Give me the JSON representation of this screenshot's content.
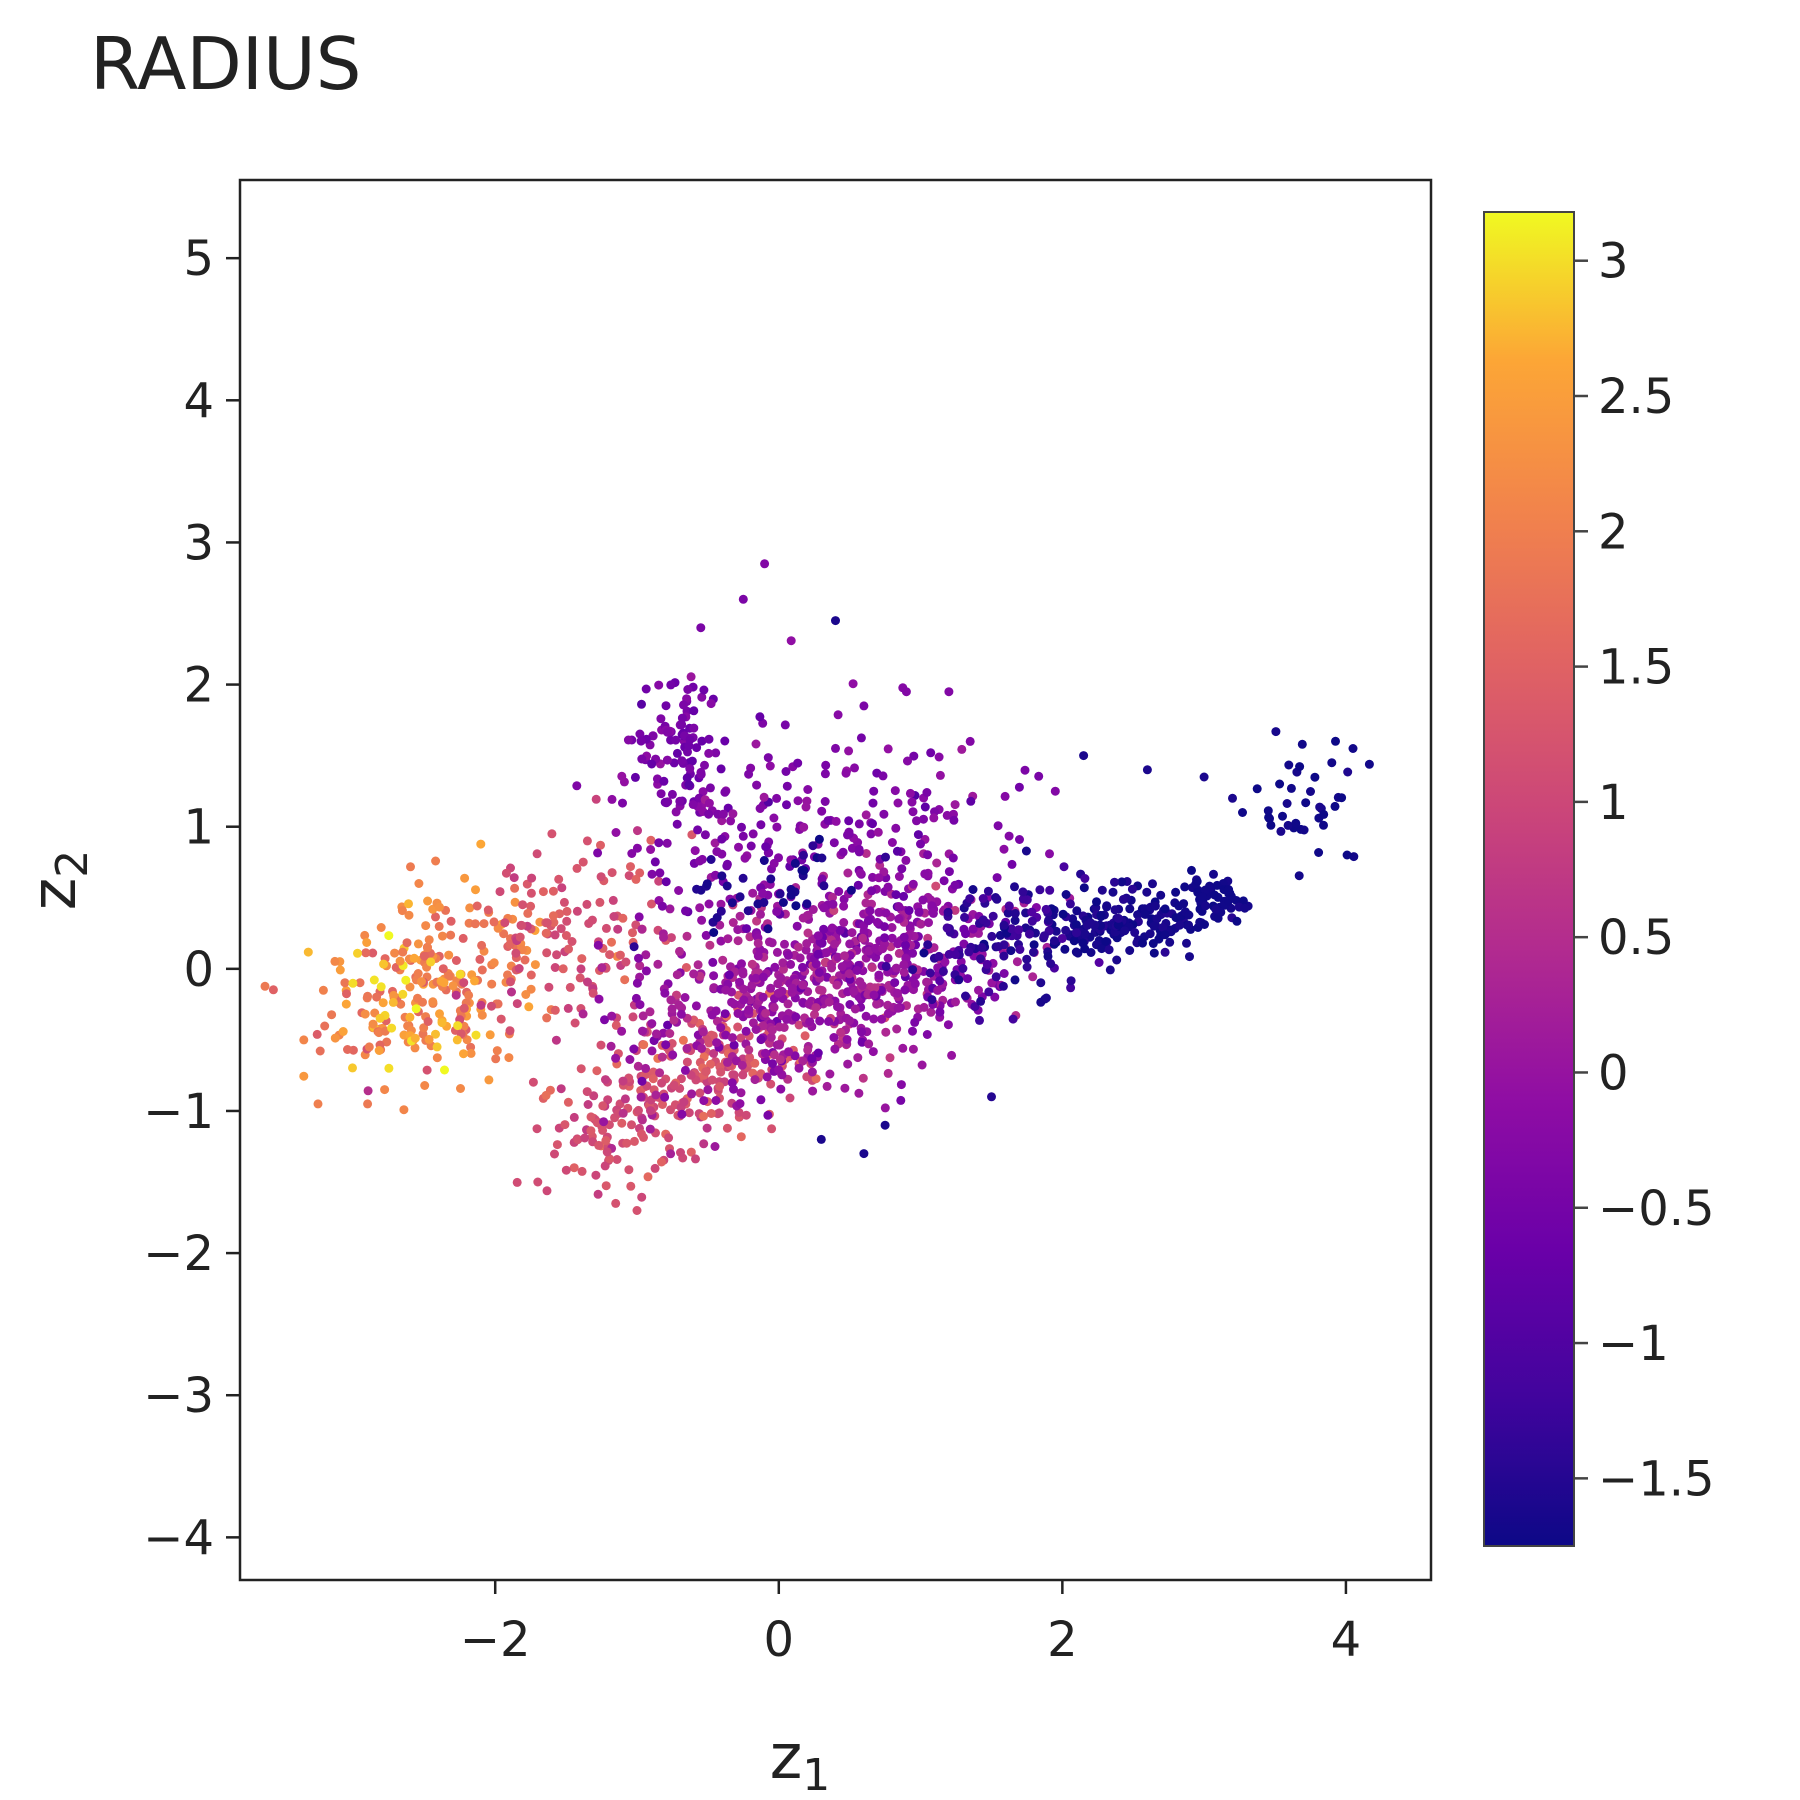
{
  "chart_data": {
    "type": "scatter",
    "title": "RADIUS",
    "xlabel": "z",
    "xlabel_sub": "1",
    "ylabel": "z",
    "ylabel_sub": "2",
    "xlim": [
      -3.8,
      4.6
    ],
    "ylim": [
      -4.3,
      5.55
    ],
    "xticks": [
      -2,
      0,
      2,
      4
    ],
    "yticks": [
      -4,
      -3,
      -2,
      -1,
      0,
      1,
      2,
      3,
      4,
      5
    ],
    "grid": false,
    "colorbar": {
      "colormap": "plasma",
      "range": [
        -1.75,
        3.18
      ],
      "ticks": [
        3,
        2.5,
        2,
        1.5,
        1,
        0.5,
        0,
        -0.5,
        -1,
        -1.5
      ],
      "tick_labels": [
        "3",
        "2.5",
        "2",
        "1.5",
        "1",
        "0.5",
        "0",
        "−0.5",
        "−1",
        "−1.5"
      ]
    },
    "clusters": [
      {
        "center": [
          -2.4,
          -0.1
        ],
        "spread": [
          0.45,
          0.35
        ],
        "rot": 0.35,
        "n": 230,
        "value": 2.0,
        "vspread": 0.35
      },
      {
        "center": [
          -2.6,
          -0.25
        ],
        "spread": [
          0.25,
          0.25
        ],
        "rot": 0.0,
        "n": 40,
        "value": 2.7,
        "vspread": 0.25
      },
      {
        "center": [
          -1.5,
          0.25
        ],
        "spread": [
          0.35,
          0.3
        ],
        "rot": 0.3,
        "n": 120,
        "value": 1.2,
        "vspread": 0.25
      },
      {
        "center": [
          -0.5,
          -0.75
        ],
        "spread": [
          0.45,
          0.25
        ],
        "rot": 0.35,
        "n": 200,
        "value": 1.2,
        "vspread": 0.25
      },
      {
        "center": [
          -1.2,
          -1.1
        ],
        "spread": [
          0.3,
          0.2
        ],
        "rot": 0.3,
        "n": 80,
        "value": 1.05,
        "vspread": 0.2
      },
      {
        "center": [
          0.1,
          -0.1
        ],
        "spread": [
          0.6,
          0.35
        ],
        "rot": 0.35,
        "n": 550,
        "value": 0.1,
        "vspread": 0.3
      },
      {
        "center": [
          0.9,
          0.05
        ],
        "spread": [
          0.5,
          0.3
        ],
        "rot": 0.3,
        "n": 200,
        "value": -0.1,
        "vspread": 0.3
      },
      {
        "center": [
          -0.7,
          1.6
        ],
        "spread": [
          0.15,
          0.25
        ],
        "rot": 0.0,
        "n": 90,
        "value": -0.45,
        "vspread": 0.2
      },
      {
        "center": [
          -0.2,
          1.0
        ],
        "spread": [
          0.5,
          0.4
        ],
        "rot": 0.3,
        "n": 140,
        "value": -0.35,
        "vspread": 0.2
      },
      {
        "center": [
          0.9,
          0.9
        ],
        "spread": [
          0.45,
          0.35
        ],
        "rot": 0.2,
        "n": 110,
        "value": -0.3,
        "vspread": 0.2
      },
      {
        "center": [
          2.4,
          0.3
        ],
        "spread": [
          0.3,
          0.12
        ],
        "rot": 0.1,
        "n": 170,
        "value": -1.65,
        "vspread": 0.1
      },
      {
        "center": [
          3.0,
          0.45
        ],
        "spread": [
          0.15,
          0.08
        ],
        "rot": 0.2,
        "n": 60,
        "value": -1.7,
        "vspread": 0.05
      },
      {
        "center": [
          1.6,
          0.25
        ],
        "spread": [
          0.35,
          0.2
        ],
        "rot": 0.3,
        "n": 120,
        "value": -1.4,
        "vspread": 0.2
      },
      {
        "center": [
          3.6,
          1.1
        ],
        "spread": [
          0.25,
          0.2
        ],
        "rot": 0.7,
        "n": 40,
        "value": -1.7,
        "vspread": 0.05
      },
      {
        "center": [
          0.0,
          0.6
        ],
        "spread": [
          0.4,
          0.12
        ],
        "rot": 0.45,
        "n": 40,
        "value": -1.6,
        "vspread": 0.1
      }
    ],
    "outliers": [
      {
        "x": -0.1,
        "y": 2.85,
        "v": -0.3
      },
      {
        "x": 0.4,
        "y": 2.45,
        "v": -1.6
      },
      {
        "x": -0.25,
        "y": 2.6,
        "v": -0.4
      },
      {
        "x": -0.55,
        "y": 2.4,
        "v": -0.4
      },
      {
        "x": 1.2,
        "y": 1.95,
        "v": -0.3
      },
      {
        "x": 0.9,
        "y": 1.95,
        "v": -0.3
      },
      {
        "x": 0.6,
        "y": 1.85,
        "v": -0.4
      },
      {
        "x": 1.35,
        "y": 1.6,
        "v": -0.3
      },
      {
        "x": 2.15,
        "y": 1.5,
        "v": -1.6
      },
      {
        "x": 2.6,
        "y": 1.4,
        "v": -1.6
      },
      {
        "x": 3.0,
        "y": 1.35,
        "v": -1.6
      },
      {
        "x": 3.2,
        "y": 1.2,
        "v": -1.6
      },
      {
        "x": 4.05,
        "y": 1.55,
        "v": -1.7
      },
      {
        "x": 3.9,
        "y": 1.45,
        "v": -1.7
      },
      {
        "x": 1.5,
        "y": -0.9,
        "v": -1.5
      },
      {
        "x": 0.6,
        "y": -1.3,
        "v": -1.6
      },
      {
        "x": 0.3,
        "y": -1.2,
        "v": -1.6
      },
      {
        "x": 0.75,
        "y": -1.1,
        "v": -1.6
      },
      {
        "x": -0.45,
        "y": -1.25,
        "v": 0.1
      },
      {
        "x": -1.15,
        "y": -1.65,
        "v": 1.2
      },
      {
        "x": -1.0,
        "y": -1.7,
        "v": 1.2
      },
      {
        "x": -1.7,
        "y": -1.5,
        "v": 1.1
      },
      {
        "x": -3.35,
        "y": -0.5,
        "v": 2.1
      },
      {
        "x": -3.25,
        "y": -0.95,
        "v": 2.0
      },
      {
        "x": -2.9,
        "y": -0.95,
        "v": 1.9
      },
      {
        "x": -2.75,
        "y": -0.7,
        "v": 3.0
      },
      {
        "x": -1.6,
        "y": 0.95,
        "v": 1.2
      },
      {
        "x": -1.35,
        "y": 0.9,
        "v": 1.2
      },
      {
        "x": 1.95,
        "y": 1.25,
        "v": -0.3
      }
    ]
  }
}
